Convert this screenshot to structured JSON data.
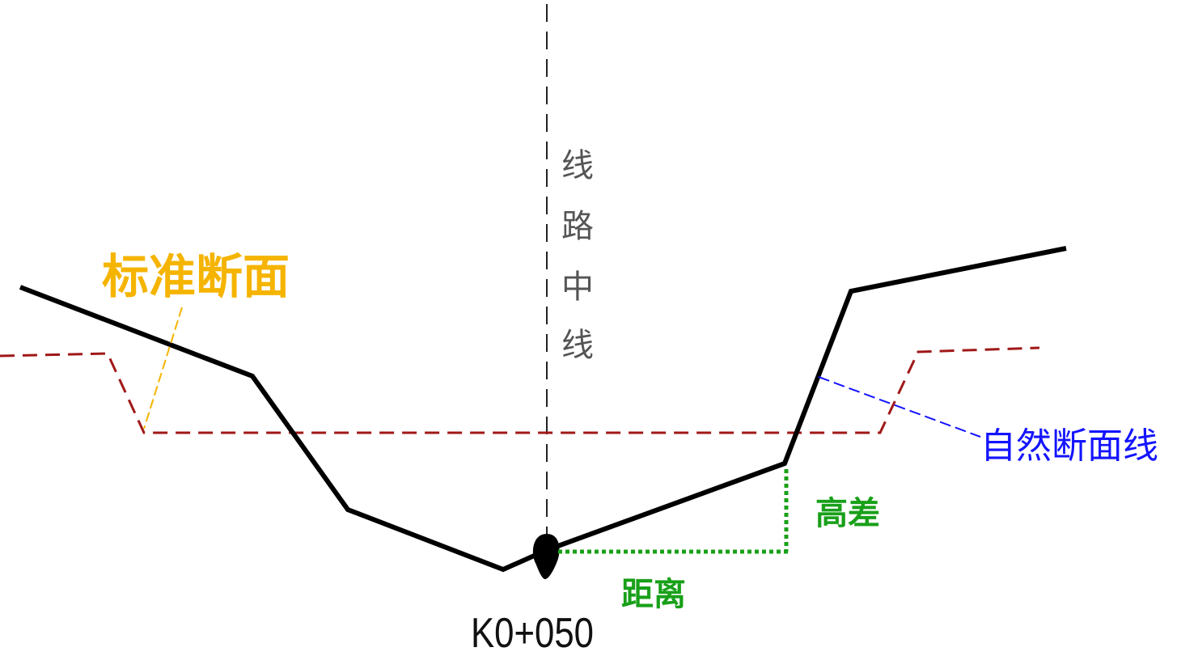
{
  "labels": {
    "standard_section": "标准断面",
    "road_centerline": [
      "线",
      "路",
      "中",
      "线"
    ],
    "natural_section": "自然断面线",
    "height_difference": "高差",
    "distance": "距离",
    "station": "K0+050"
  },
  "colors": {
    "natural_ground": "#000000",
    "standard_section": "#a01818",
    "standard_label": "#f5b400",
    "natural_label": "#1414ff",
    "measurement": "#19a019",
    "centerline": "#222222",
    "centerline_label": "#555555",
    "station_label": "#111111"
  }
}
